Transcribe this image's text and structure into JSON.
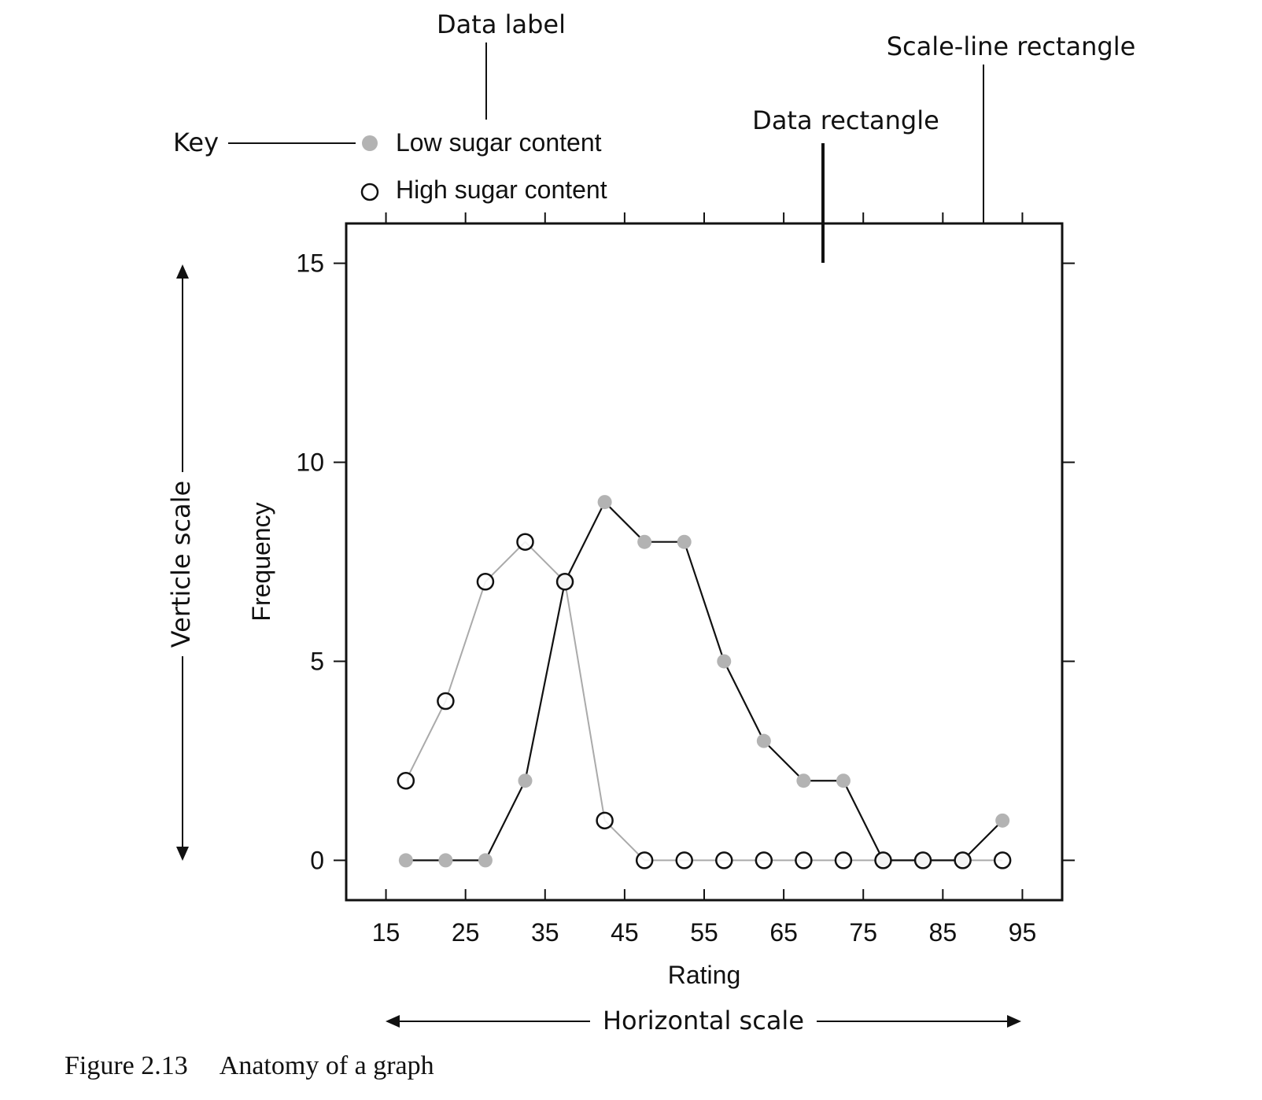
{
  "chart_data": {
    "type": "line",
    "title": "",
    "xlabel": "Rating",
    "ylabel": "Frequency",
    "x_ticks": [
      15,
      25,
      35,
      45,
      55,
      65,
      75,
      85,
      95
    ],
    "y_ticks": [
      0,
      5,
      10,
      15
    ],
    "xlim": [
      10,
      100
    ],
    "ylim": [
      -1,
      16
    ],
    "grid": false,
    "legend_position": "top-left",
    "series": [
      {
        "name": "Low sugar content",
        "marker": "filled-circle",
        "marker_color": "#b3b3b3",
        "line_color": "#111111",
        "x": [
          17.5,
          22.5,
          27.5,
          32.5,
          37.5,
          42.5,
          47.5,
          52.5,
          57.5,
          62.5,
          67.5,
          72.5,
          77.5,
          82.5,
          87.5,
          92.5
        ],
        "y": [
          0,
          0,
          0,
          2,
          7,
          9,
          8,
          8,
          5,
          3,
          2,
          2,
          0,
          0,
          0,
          1
        ]
      },
      {
        "name": "High sugar content",
        "marker": "open-circle",
        "marker_color": "#111111",
        "line_color": "#aaaaaa",
        "x": [
          17.5,
          22.5,
          27.5,
          32.5,
          37.5,
          42.5,
          47.5,
          52.5,
          57.5,
          62.5,
          67.5,
          72.5,
          77.5,
          82.5,
          87.5,
          92.5
        ],
        "y": [
          2,
          4,
          7,
          8,
          7,
          1,
          0,
          0,
          0,
          0,
          0,
          0,
          0,
          0,
          0,
          0
        ]
      }
    ],
    "annotations": {
      "data_label": "Data label",
      "scale_line_rectangle": "Scale-line rectangle",
      "data_rectangle": "Data rectangle",
      "key": "Key",
      "vertical_scale": "Verticle scale",
      "horizontal_scale": "Horizontal scale"
    }
  },
  "caption": {
    "number": "Figure 2.13",
    "text": "Anatomy of a graph"
  }
}
